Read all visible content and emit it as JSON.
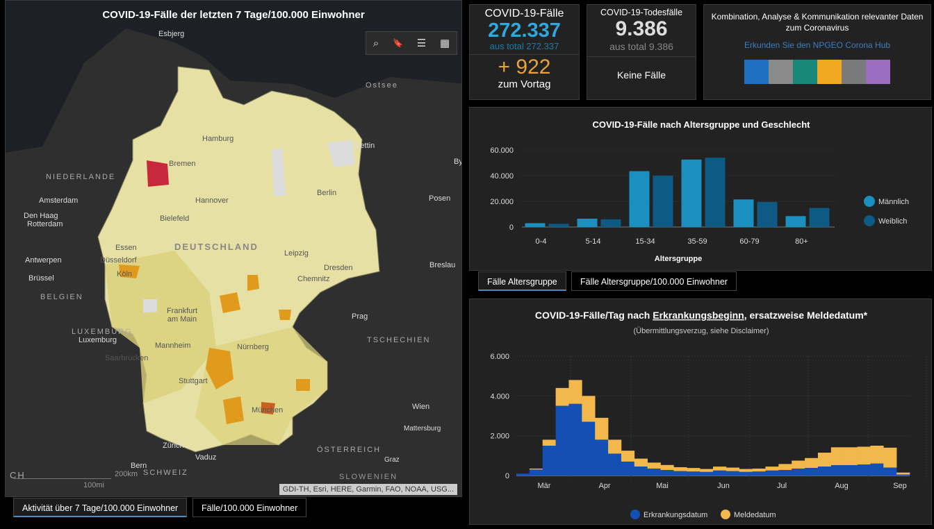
{
  "map": {
    "title": "COVID-19-Fälle der letzten 7 Tage/100.000 Einwohner",
    "labels": {
      "esbjerg": "Esbjerg",
      "ostsee": "Ostsee",
      "hamburg": "Hamburg",
      "stettin": "Stettin",
      "niederlande": "NIEDERLANDE",
      "bremen": "Bremen",
      "berlin": "Berlin",
      "amsterdam": "Amsterdam",
      "hannover": "Hannover",
      "posen": "Posen",
      "denhaag": "Den Haag",
      "rotterdam": "Rotterdam",
      "bielefeld": "Bielefeld",
      "deutschland": "DEUTSCHLAND",
      "essen": "Essen",
      "leipzig": "Leipzig",
      "antwerpen": "Antwerpen",
      "duesseldorf": "Düsseldorf",
      "dresden": "Dresden",
      "breslau": "Breslau",
      "koeln": "Köln",
      "bruessel": "Brüssel",
      "chemnitz": "Chemnitz",
      "belgien": "BELGIEN",
      "frankfurt": "Frankfurt am Main",
      "prag": "Prag",
      "luxemburg_c": "LUXEMBURG",
      "luxemburg": "Luxemburg",
      "tschechien": "TSCHECHIEN",
      "mannheim": "Mannheim",
      "nuernberg": "Nürnberg",
      "saarbruecken": "Saarbrücken",
      "stuttgart": "Stuttgart",
      "muenchen": "München",
      "wien": "Wien",
      "mattersburg": "Mattersburg",
      "zuerich": "Zürich",
      "vaduz": "Vaduz",
      "oesterreich": "ÖSTERREICH",
      "graz": "Graz",
      "bern": "Bern",
      "schweiz": "SCHWEIZ",
      "ch": "CH",
      "by": "By",
      "slowenien": "SLOWENIEN"
    },
    "scale": {
      "km": "200km",
      "mi": "100mi"
    },
    "attribution": "GDI-TH, Esri, HERE, Garmin, FAO, NOAA, USG...",
    "tools": {
      "search": "⌕",
      "bookmark": "🔖",
      "legend": "☰",
      "basemap": "▦"
    },
    "tabs": [
      "Aktivität über 7 Tage/100.000 Einwohner",
      "Fälle/100.000 Einwohner"
    ],
    "colors": {
      "low": "#e8e3a8",
      "mid": "#d9cf78",
      "high": "#e09a1c",
      "critical": "#c8283c",
      "none": "#d8d8d8"
    }
  },
  "cases": {
    "title": "COVID-19-Fälle",
    "value": "272.337",
    "total": "aus total 272.337",
    "delta": "+ 922",
    "delta_label": "zum Vortag"
  },
  "deaths": {
    "title": "COVID-19-Todesfälle",
    "value": "9.386",
    "total": "aus total 9.386",
    "new": "Keine Fälle"
  },
  "hub": {
    "text": "Kombination, Analyse & Kommunikation relevanter Daten zum Coronavirus",
    "link": "Erkunden Sie den NPGEO Corona Hub",
    "icons": [
      {
        "name": "plant-hand",
        "color": "#1f6fc1"
      },
      {
        "name": "location-houses",
        "color": "#8a8a8a"
      },
      {
        "name": "heart-pulse",
        "color": "#17887a"
      },
      {
        "name": "map-area",
        "color": "#f0a820"
      },
      {
        "name": "cars",
        "color": "#7a7a7a"
      },
      {
        "name": "bell-tower",
        "color": "#9b6cc0"
      }
    ]
  },
  "age_tabs": [
    "Fälle Altersgruppe",
    "Fälle Altersgruppe/100.000 Einwohner"
  ],
  "chart_data": [
    {
      "type": "bar",
      "title": "COVID-19-Fälle nach Altersgruppe und Geschlecht",
      "xlabel": "Altersgruppe",
      "ylabel": "",
      "categories": [
        "0-4",
        "5-14",
        "15-34",
        "35-59",
        "60-79",
        "80+"
      ],
      "yticks": [
        "0",
        "20.000",
        "40.000",
        "60.000"
      ],
      "ylim": [
        0,
        60000
      ],
      "legend": "right",
      "series": [
        {
          "name": "Männlich",
          "color": "#1a8fc0",
          "values": [
            3000,
            6500,
            43500,
            52500,
            21500,
            8500
          ]
        },
        {
          "name": "Weiblich",
          "color": "#0d5a85",
          "values": [
            2500,
            6000,
            40000,
            54000,
            19500,
            14800
          ]
        }
      ]
    },
    {
      "type": "bar",
      "stacked": true,
      "title": "COVID-19-Fälle/Tag nach Erkrankungsbeginn, ersatzweise Meldedatum*",
      "title_plain": "COVID-19-Fälle/Tag nach ",
      "title_underlined": "Erkrankungsbeginn",
      "title_rest": ", ersatzweise Meldedatum*",
      "subtitle": "(Übermittlungsverzug, siehe Disclaimer)",
      "xticks": [
        "Mär",
        "Apr",
        "Mai",
        "Jun",
        "Jul",
        "Aug",
        "Sep"
      ],
      "yticks": [
        "0",
        "2.000",
        "4.000",
        "6.000"
      ],
      "ylim": [
        0,
        6000
      ],
      "legend": "bottom",
      "x_unit": "week starting 16 Feb",
      "series": [
        {
          "name": "Erkrankungsdatum",
          "color": "#1450b4",
          "values": [
            100,
            300,
            1500,
            3500,
            3600,
            2700,
            1800,
            1100,
            700,
            450,
            350,
            280,
            220,
            200,
            180,
            250,
            220,
            180,
            200,
            250,
            280,
            350,
            380,
            450,
            520,
            520,
            550,
            600,
            400,
            50
          ]
        },
        {
          "name": "Meldedatum",
          "color": "#f2b84b",
          "values": [
            0,
            50,
            300,
            900,
            1200,
            1300,
            1100,
            700,
            550,
            400,
            300,
            250,
            200,
            180,
            150,
            200,
            180,
            150,
            150,
            200,
            300,
            400,
            500,
            700,
            900,
            900,
            900,
            900,
            1000,
            100
          ]
        }
      ]
    }
  ]
}
